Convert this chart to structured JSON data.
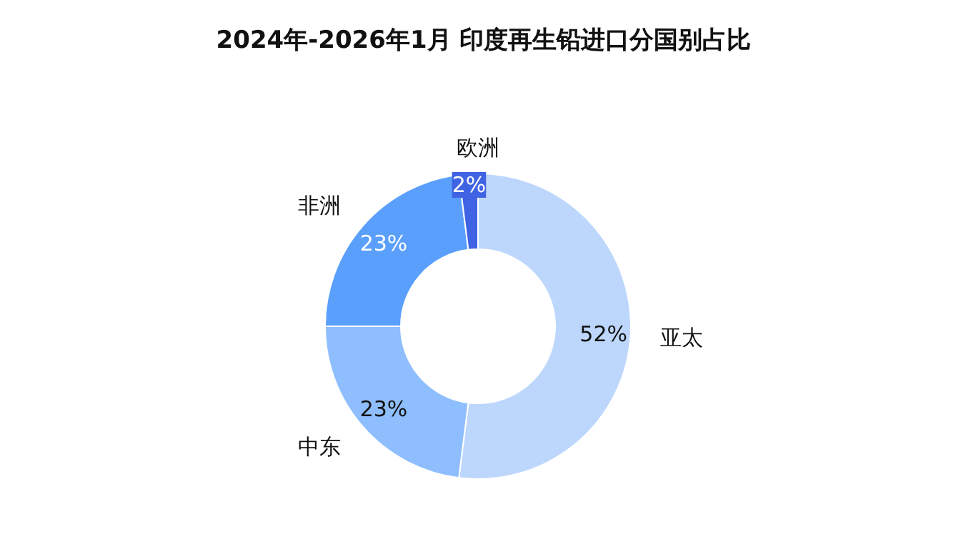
{
  "chart_data": {
    "type": "donut",
    "title": "2024年-2026年1月 印度再生铅进口分国别占比",
    "categories": [
      "亚太",
      "中东",
      "非洲",
      "欧洲"
    ],
    "values": [
      52,
      23,
      23,
      2
    ],
    "colors": [
      "#bdd7fc",
      "#8ebefd",
      "#5a9ffb",
      "#3f63e3"
    ],
    "value_labels": [
      "52%",
      "23%",
      "23%",
      "2%"
    ]
  }
}
